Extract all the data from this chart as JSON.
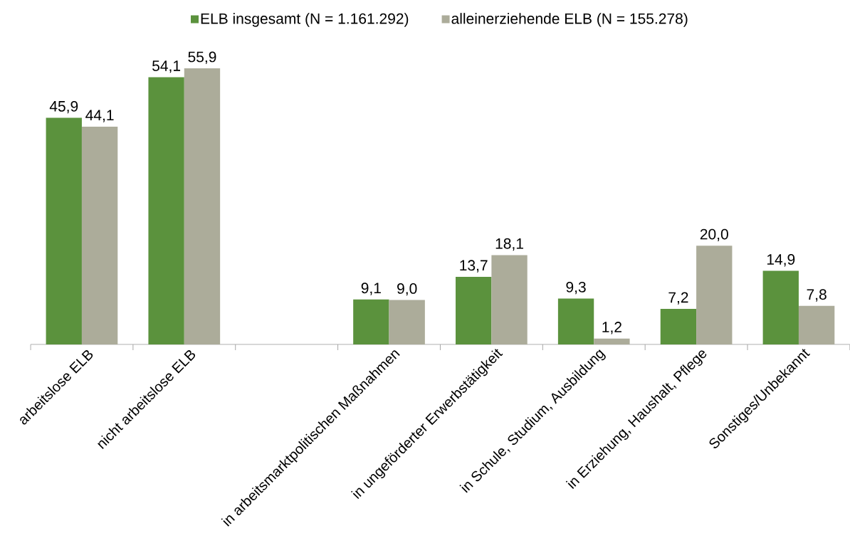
{
  "chart_data": {
    "type": "bar",
    "categories": [
      "arbeitslose ELB",
      "nicht arbeitslose ELB",
      null,
      "in arbeitsmarktpolitischen Maßnahmen",
      "in ungeförderter Erwerbstätigkeit",
      "in Schule, Studium, Ausbildung",
      "in Erziehung, Haushalt, Pflege",
      "Sonstiges/Unbekannt"
    ],
    "series": [
      {
        "name": "ELB insgesamt (N = 1.161.292)",
        "color": "#5b923d",
        "values": [
          45.9,
          54.1,
          null,
          9.1,
          13.7,
          9.3,
          7.2,
          14.9
        ],
        "value_labels": [
          "45,9",
          "54,1",
          null,
          "9,1",
          "13,7",
          "9,3",
          "7,2",
          "14,9"
        ]
      },
      {
        "name": "alleinerziehende ELB (N = 155.278)",
        "color": "#acac9a",
        "values": [
          44.1,
          55.9,
          null,
          9.0,
          18.1,
          1.2,
          20.0,
          7.8
        ],
        "value_labels": [
          "44,1",
          "55,9",
          null,
          "9,0",
          "18,1",
          "1,2",
          "20,0",
          "7,8"
        ]
      }
    ],
    "legend": "top",
    "tick_labels": "x"
  }
}
